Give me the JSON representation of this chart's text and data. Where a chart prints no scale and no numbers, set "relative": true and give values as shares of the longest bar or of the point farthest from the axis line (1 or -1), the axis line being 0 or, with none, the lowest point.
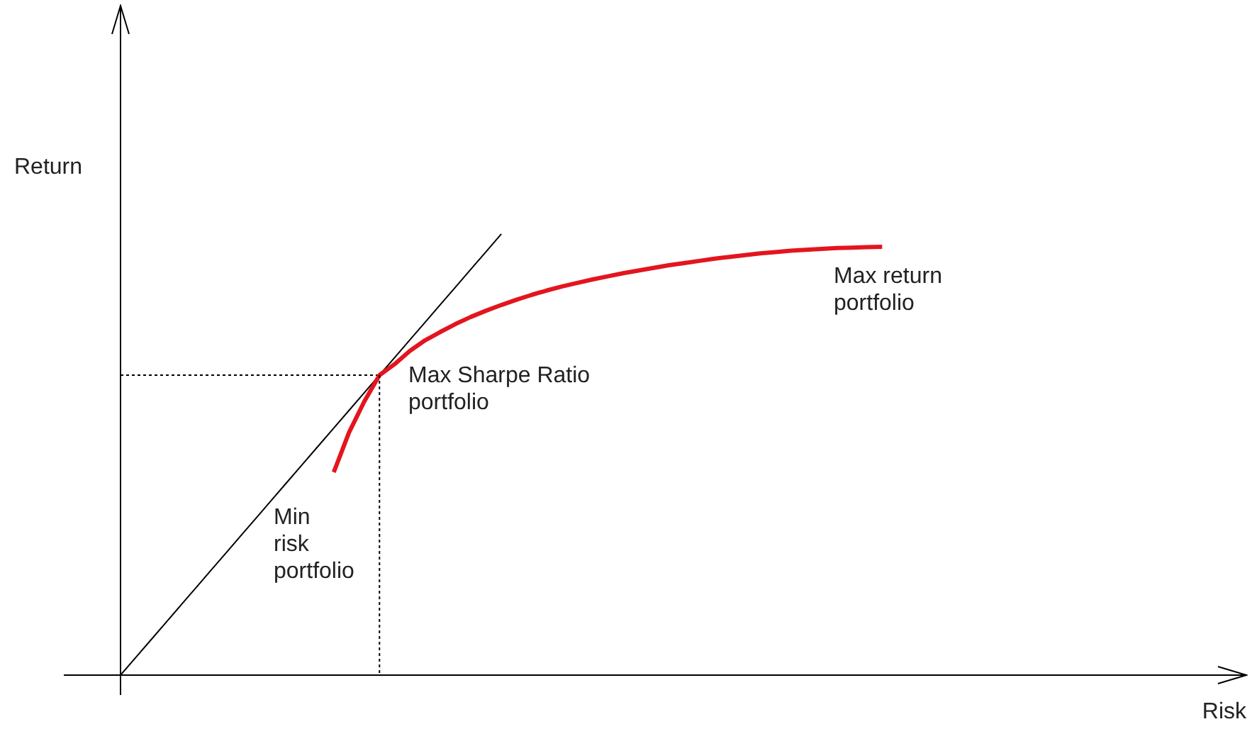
{
  "chart_data": {
    "type": "line",
    "relative": true,
    "xlabel": "Risk",
    "ylabel": "Return",
    "legend": false,
    "marker": "none",
    "categories": [
      null,
      null,
      null,
      null,
      null,
      null,
      null,
      null,
      null,
      null,
      null,
      null,
      null,
      null,
      null,
      null,
      null,
      null,
      null,
      null,
      null,
      null,
      null,
      null,
      null,
      null,
      null,
      null,
      null,
      null,
      null,
      null,
      null,
      null,
      null,
      null,
      null,
      null,
      null,
      null,
      null,
      null,
      null,
      null,
      null,
      null,
      null,
      null,
      null,
      null,
      null,
      null,
      null,
      null,
      null,
      null,
      null,
      null,
      null,
      null,
      null,
      null,
      null,
      null,
      null,
      null,
      null,
      null,
      null,
      null,
      null,
      null,
      null,
      null,
      null
    ],
    "series": [
      {
        "color": "#e3151e",
        "values": [
          null,
          null,
          null,
          null,
          null,
          null,
          null,
          null,
          null,
          null,
          null,
          null,
          null,
          null,
          0.46,
          0.55,
          0.62,
          0.68,
          0.705,
          0.735,
          0.759,
          0.778,
          0.796,
          0.812,
          0.826,
          0.839,
          0.851,
          0.862,
          0.872,
          0.881,
          0.889,
          0.897,
          0.904,
          0.911,
          0.917,
          0.923,
          0.929,
          0.934,
          0.939,
          0.944,
          0.948,
          0.952,
          0.956,
          0.959,
          0.962,
          0.964,
          0.966,
          0.968,
          0.969,
          0.97,
          0.971,
          null,
          null,
          null,
          null,
          null,
          null,
          null,
          null,
          null,
          null,
          null,
          null,
          null,
          null,
          null,
          null,
          null,
          null,
          null,
          null,
          null,
          null,
          null,
          null
        ]
      },
      {
        "color": "#000000",
        "values": [
          0,
          0.04,
          0.08,
          0.12,
          0.16,
          0.2,
          0.24,
          0.28,
          0.32,
          0.36,
          0.4,
          0.44,
          0.48,
          0.52,
          0.56,
          0.6,
          0.64,
          0.68,
          0.72,
          0.76,
          0.8,
          0.84,
          0.88,
          0.92,
          0.96,
          1,
          null,
          null,
          null,
          null,
          null,
          null,
          null,
          null,
          null,
          null,
          null,
          null,
          null,
          null,
          null,
          null,
          null,
          null,
          null,
          null,
          null,
          null,
          null,
          null,
          null,
          null,
          null,
          null,
          null,
          null,
          null,
          null,
          null,
          null,
          null,
          null,
          null,
          null,
          null,
          null,
          null,
          null,
          null,
          null,
          null,
          null,
          null,
          null,
          null
        ]
      },
      {
        "color": "#000000",
        "line_style": "dotted",
        "values": [
          0.68,
          0.68,
          0.68,
          0.68,
          0.68,
          0.68,
          0.68,
          0.68,
          0.68,
          0.68,
          0.68,
          0.68,
          0.68,
          0.68,
          0.68,
          0.68,
          0.68,
          0.68,
          null,
          null,
          null,
          null,
          null,
          null,
          null,
          null,
          null,
          null,
          null,
          null,
          null,
          null,
          null,
          null,
          null,
          null,
          null,
          null,
          null,
          null,
          null,
          null,
          null,
          null,
          null,
          null,
          null,
          null,
          null,
          null,
          null,
          null,
          null,
          null,
          null,
          null,
          null,
          null,
          null,
          null,
          null,
          null,
          null,
          null,
          null,
          null,
          null,
          null,
          null,
          null,
          null,
          null,
          null,
          null,
          null
        ]
      }
    ],
    "annotations": [
      "Max return\nportfolio",
      "Max Sharpe Ratio\nportfolio",
      "Min\nrisk\nportfolio"
    ]
  }
}
